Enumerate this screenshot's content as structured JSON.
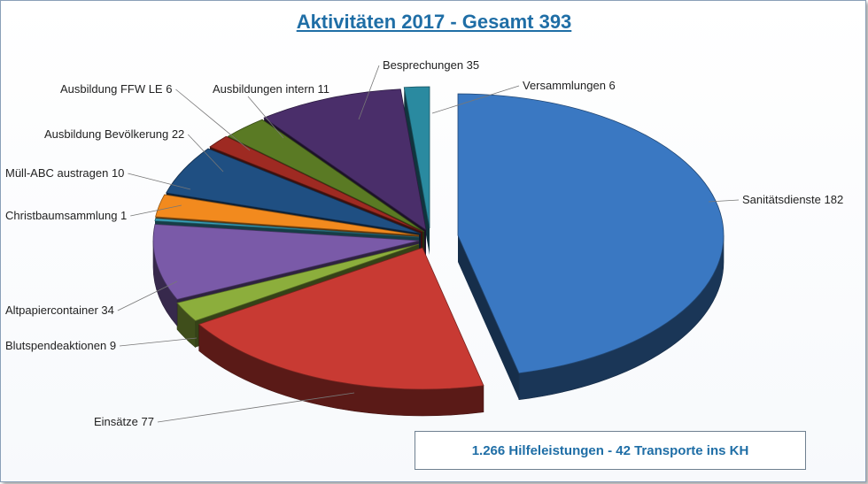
{
  "chart_data": {
    "type": "pie",
    "title": "Aktivitäten 2017 - Gesamt 393",
    "slices": [
      {
        "label": "Sanitätsdienste 182",
        "value": 182,
        "color": "#3a78c2"
      },
      {
        "label": "Einsätze 77",
        "value": 77,
        "color": "#c83a33"
      },
      {
        "label": "Blutspendeaktionen 9",
        "value": 9,
        "color": "#8cae3c"
      },
      {
        "label": "Altpapiercontainer 34",
        "value": 34,
        "color": "#7a5aa8"
      },
      {
        "label": "Christbaumsammlung 1",
        "value": 1,
        "color": "#3aa0b8"
      },
      {
        "label": "Müll-ABC austragen 10",
        "value": 10,
        "color": "#f28a1e"
      },
      {
        "label": "Ausbildung Bevölkerung 22",
        "value": 22,
        "color": "#1f4f82"
      },
      {
        "label": "Ausbildung FFW LE 6",
        "value": 6,
        "color": "#9e2a22"
      },
      {
        "label": "Ausbildungen intern 11",
        "value": 11,
        "color": "#5a7a24"
      },
      {
        "label": "Besprechungen 35",
        "value": 35,
        "color": "#4a2e6a"
      },
      {
        "label": "Versammlungen 6",
        "value": 6,
        "color": "#2a8aa0"
      }
    ],
    "note": "1.266 Hilfeleistungen - 42 Transporte ins KH"
  }
}
